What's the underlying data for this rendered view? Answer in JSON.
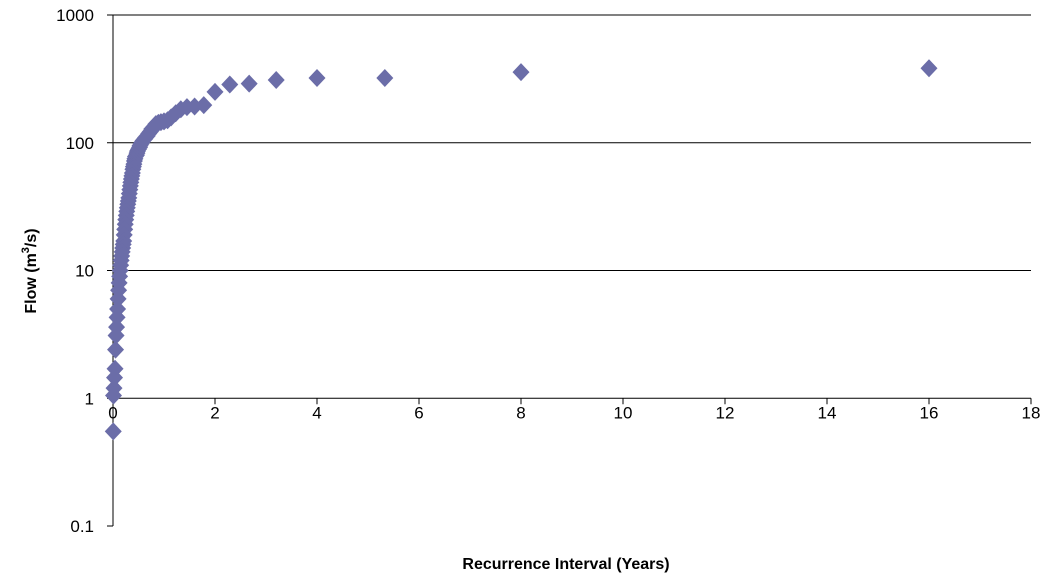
{
  "chart_data": {
    "type": "scatter",
    "title": "",
    "xlabel": "Recurrence Interval (Years)",
    "ylabel": {
      "prefix": "Flow (m",
      "sup": "3",
      "suffix": "/s)"
    },
    "xlim": [
      0,
      18
    ],
    "ylim": [
      0.1,
      1000
    ],
    "y_scale": "log",
    "x_crosses_y_at": 1,
    "x_ticks": [
      "0",
      "2",
      "4",
      "6",
      "8",
      "10",
      "12",
      "14",
      "16",
      "18"
    ],
    "y_ticks": [
      "0.1",
      "1",
      "10",
      "100",
      "1000"
    ],
    "y_gridlines": [
      10,
      100,
      1000
    ],
    "marker": "diamond",
    "marker_color": "#6b6da8",
    "legend": "none",
    "series": [
      {
        "values": [
          [
            16.0,
            383
          ],
          [
            8.0,
            357
          ],
          [
            5.33,
            321
          ],
          [
            4.0,
            321
          ],
          [
            3.2,
            310
          ],
          [
            2.67,
            290
          ],
          [
            2.29,
            286
          ],
          [
            2.0,
            250
          ],
          [
            1.78,
            197
          ],
          [
            1.6,
            192
          ],
          [
            1.45,
            190
          ],
          [
            1.33,
            183
          ],
          [
            1.23,
            170
          ],
          [
            1.14,
            158
          ],
          [
            1.07,
            150
          ],
          [
            1.0,
            147
          ],
          [
            0.94,
            145
          ],
          [
            0.89,
            143
          ],
          [
            0.84,
            140
          ],
          [
            0.8,
            133
          ],
          [
            0.76,
            128
          ],
          [
            0.73,
            122
          ],
          [
            0.7,
            118
          ],
          [
            0.67,
            113
          ],
          [
            0.64,
            110
          ],
          [
            0.62,
            107
          ],
          [
            0.59,
            104
          ],
          [
            0.57,
            101
          ],
          [
            0.55,
            98
          ],
          [
            0.53,
            95
          ],
          [
            0.52,
            92
          ],
          [
            0.5,
            89
          ],
          [
            0.48,
            86
          ],
          [
            0.47,
            83
          ],
          [
            0.46,
            80
          ],
          [
            0.44,
            78
          ],
          [
            0.43,
            75
          ],
          [
            0.42,
            72
          ],
          [
            0.41,
            68
          ],
          [
            0.4,
            65
          ],
          [
            0.39,
            62
          ],
          [
            0.38,
            58
          ],
          [
            0.37,
            55
          ],
          [
            0.36,
            52
          ],
          [
            0.35,
            49
          ],
          [
            0.34,
            46
          ],
          [
            0.33,
            43
          ],
          [
            0.32,
            40
          ],
          [
            0.31,
            37
          ],
          [
            0.3,
            35
          ],
          [
            0.29,
            33
          ],
          [
            0.28,
            31
          ],
          [
            0.27,
            29
          ],
          [
            0.26,
            27
          ],
          [
            0.25,
            25
          ],
          [
            0.24,
            23
          ],
          [
            0.23,
            21
          ],
          [
            0.22,
            19
          ],
          [
            0.21,
            17
          ],
          [
            0.2,
            16
          ],
          [
            0.19,
            15
          ],
          [
            0.18,
            14
          ],
          [
            0.17,
            13
          ],
          [
            0.16,
            12
          ],
          [
            0.15,
            11
          ],
          [
            0.14,
            10
          ],
          [
            0.13,
            9
          ],
          [
            0.12,
            8
          ],
          [
            0.11,
            7
          ],
          [
            0.1,
            6
          ],
          [
            0.09,
            5
          ],
          [
            0.08,
            4.3
          ],
          [
            0.07,
            3.6
          ],
          [
            0.06,
            3.1
          ],
          [
            0.05,
            2.4
          ],
          [
            0.04,
            1.7
          ],
          [
            0.03,
            1.45
          ],
          [
            0.02,
            1.2
          ],
          [
            0.01,
            1.05
          ],
          [
            0.005,
            0.55
          ]
        ]
      }
    ]
  }
}
